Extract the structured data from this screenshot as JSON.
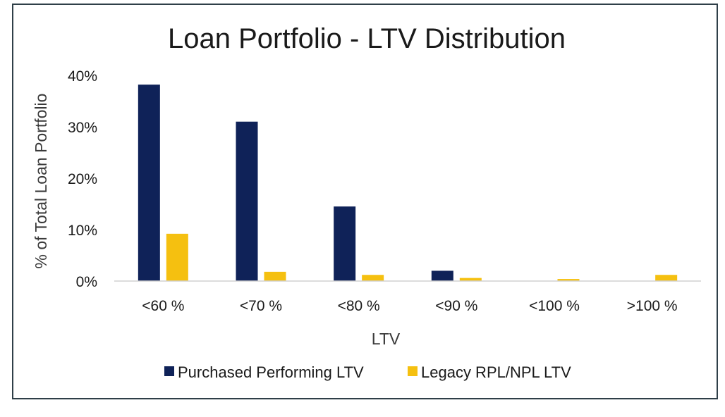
{
  "chart_data": {
    "type": "bar",
    "title": "Loan Portfolio - LTV Distribution",
    "xlabel": "LTV",
    "ylabel": "% of Total Loan Portfolio",
    "categories": [
      "<60 %",
      "<70 %",
      "<80 %",
      "<90 %",
      "<100 %",
      ">100 %"
    ],
    "series": [
      {
        "name": "Purchased Performing LTV",
        "color": "#0f2258",
        "values": [
          38.2,
          31.0,
          14.5,
          2.0,
          0.0,
          0.0
        ]
      },
      {
        "name": "Legacy RPL/NPL LTV",
        "color": "#f5c010",
        "values": [
          9.2,
          1.8,
          1.2,
          0.6,
          0.4,
          1.2
        ]
      }
    ],
    "yticks": [
      0,
      10,
      20,
      30,
      40
    ],
    "ytick_labels": [
      "0%",
      "10%",
      "20%",
      "30%",
      "40%"
    ],
    "ylim": [
      0,
      40
    ],
    "grid": false,
    "legend_position": "bottom"
  }
}
